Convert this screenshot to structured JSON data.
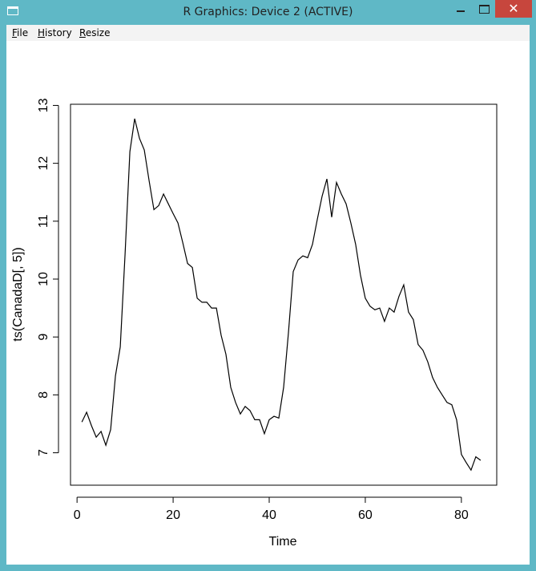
{
  "window": {
    "title": "R Graphics: Device 2 (ACTIVE)",
    "close_glyph": "✕"
  },
  "menu": {
    "items": [
      {
        "first": "F",
        "rest": "ile"
      },
      {
        "first": "H",
        "rest": "istory"
      },
      {
        "first": "R",
        "rest": "esize"
      }
    ]
  },
  "chart_data": {
    "type": "line",
    "xlabel": "Time",
    "ylabel": "ts(CanadaD[, 5])",
    "xlim": [
      -1.36,
      87.36
    ],
    "ylim": [
      6.44,
      13.02
    ],
    "x_ticks": [
      0,
      20,
      40,
      60,
      80
    ],
    "y_ticks": [
      7,
      8,
      9,
      10,
      11,
      12,
      13
    ],
    "x": [
      1,
      2,
      3,
      4,
      5,
      6,
      7,
      8,
      9,
      10,
      11,
      12,
      13,
      14,
      15,
      16,
      17,
      18,
      19,
      20,
      21,
      22,
      23,
      24,
      25,
      26,
      27,
      28,
      29,
      30,
      31,
      32,
      33,
      34,
      35,
      36,
      37,
      38,
      39,
      40,
      41,
      42,
      43,
      44,
      45,
      46,
      47,
      48,
      49,
      50,
      51,
      52,
      53,
      54,
      55,
      56,
      57,
      58,
      59,
      60,
      61,
      62,
      63,
      64,
      65,
      66,
      67,
      68,
      69,
      70,
      71,
      72,
      73,
      74,
      75,
      76,
      77,
      78,
      79,
      80,
      81,
      82,
      83,
      84
    ],
    "values": [
      7.53,
      7.7,
      7.47,
      7.27,
      7.37,
      7.13,
      7.4,
      8.33,
      8.83,
      10.43,
      12.2,
      12.77,
      12.43,
      12.23,
      11.7,
      11.2,
      11.27,
      11.47,
      11.3,
      11.13,
      10.97,
      10.63,
      10.27,
      10.2,
      9.67,
      9.6,
      9.6,
      9.5,
      9.5,
      9.03,
      8.7,
      8.13,
      7.87,
      7.67,
      7.8,
      7.73,
      7.57,
      7.57,
      7.33,
      7.57,
      7.63,
      7.6,
      8.13,
      9.07,
      10.13,
      10.33,
      10.4,
      10.37,
      10.6,
      11.03,
      11.43,
      11.73,
      11.07,
      11.67,
      11.47,
      11.3,
      10.97,
      10.6,
      10.07,
      9.67,
      9.53,
      9.47,
      9.5,
      9.27,
      9.5,
      9.43,
      9.7,
      9.9,
      9.43,
      9.3,
      8.87,
      8.77,
      8.57,
      8.3,
      8.13,
      8.0,
      7.87,
      7.83,
      7.57,
      6.97,
      6.83,
      6.7,
      6.93,
      6.87
    ],
    "grid": false
  }
}
